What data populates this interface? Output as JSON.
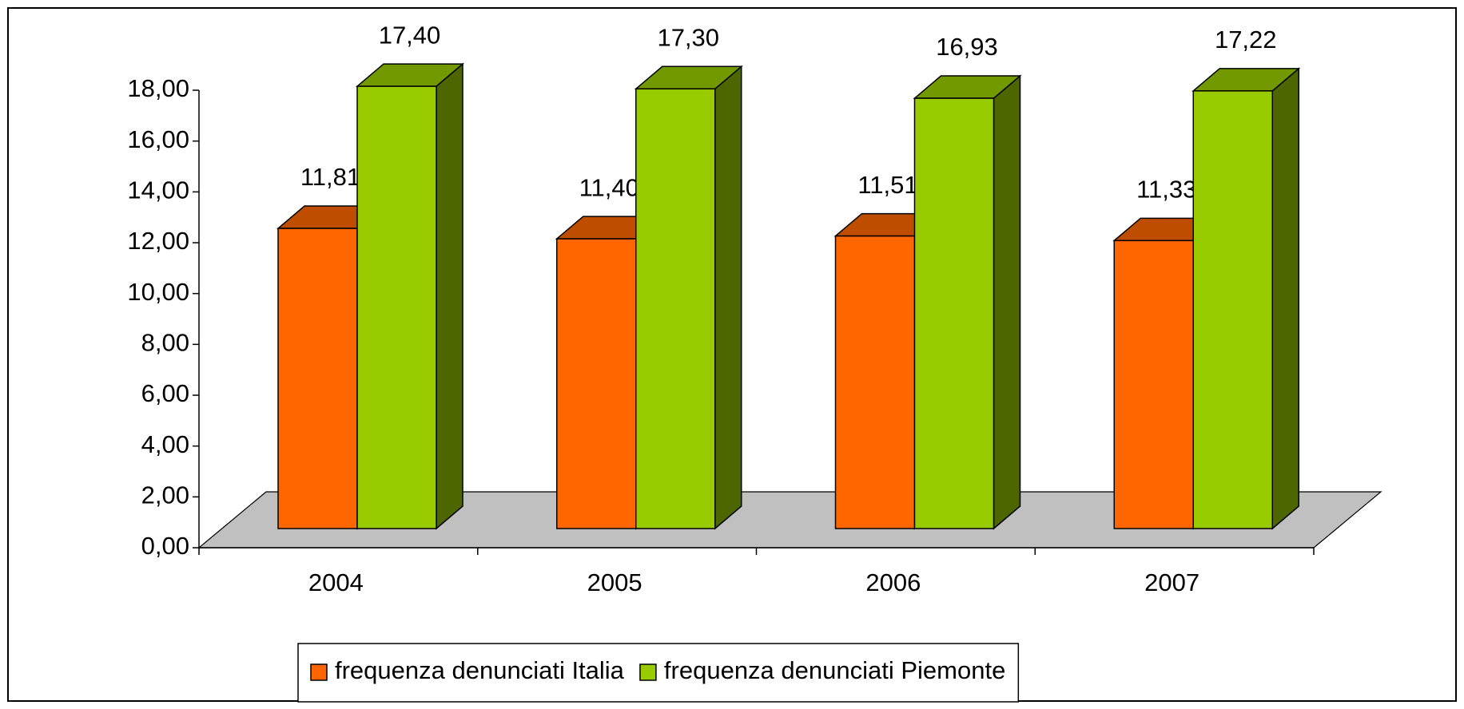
{
  "chart_data": {
    "type": "bar3d",
    "categories": [
      "2004",
      "2005",
      "2006",
      "2007"
    ],
    "series": [
      {
        "name": "frequenza denunciati Italia",
        "color": "#ff6600",
        "values": [
          11.81,
          11.4,
          11.51,
          11.33
        ],
        "value_labels": [
          "11,81",
          "11,40",
          "11,51",
          "11,33"
        ]
      },
      {
        "name": "frequenza denunciati Piemonte",
        "color": "#99cc00",
        "values": [
          17.4,
          17.3,
          16.93,
          17.22
        ],
        "value_labels": [
          "17,40",
          "17,30",
          "16,93",
          "17,22"
        ]
      }
    ],
    "ylim": [
      0,
      18
    ],
    "yticks": [
      {
        "value": 0,
        "label": "0,00"
      },
      {
        "value": 2,
        "label": "2,00"
      },
      {
        "value": 4,
        "label": "4,00"
      },
      {
        "value": 6,
        "label": "6,00"
      },
      {
        "value": 8,
        "label": "8,00"
      },
      {
        "value": 10,
        "label": "10,00"
      },
      {
        "value": 12,
        "label": "12,00"
      },
      {
        "value": 14,
        "label": "14,00"
      },
      {
        "value": 16,
        "label": "16,00"
      },
      {
        "value": 18,
        "label": "18,00"
      }
    ],
    "legend": "bottom"
  }
}
